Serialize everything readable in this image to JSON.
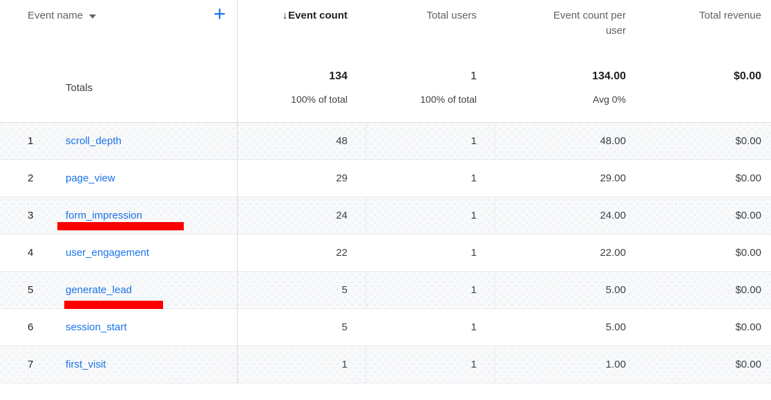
{
  "table": {
    "header": {
      "dimension_label": "Event name",
      "columns": {
        "event_count": "Event count",
        "total_users": "Total users",
        "event_count_per_user": "Event count per user",
        "total_revenue": "Total revenue"
      },
      "sorted_column": "Event count",
      "sort_direction": "descending"
    },
    "totals": {
      "label": "Totals",
      "event_count": "134",
      "event_count_sub": "100% of total",
      "total_users": "1",
      "total_users_sub": "100% of total",
      "event_count_per_user": "134.00",
      "event_count_per_user_sub": "Avg 0%",
      "total_revenue": "$0.00"
    },
    "rows": [
      {
        "index": "1",
        "name": "scroll_depth",
        "event_count": "48",
        "total_users": "1",
        "event_count_per_user": "48.00",
        "total_revenue": "$0.00"
      },
      {
        "index": "2",
        "name": "page_view",
        "event_count": "29",
        "total_users": "1",
        "event_count_per_user": "29.00",
        "total_revenue": "$0.00"
      },
      {
        "index": "3",
        "name": "form_impression",
        "event_count": "24",
        "total_users": "1",
        "event_count_per_user": "24.00",
        "total_revenue": "$0.00"
      },
      {
        "index": "4",
        "name": "user_engagement",
        "event_count": "22",
        "total_users": "1",
        "event_count_per_user": "22.00",
        "total_revenue": "$0.00"
      },
      {
        "index": "5",
        "name": "generate_lead",
        "event_count": "5",
        "total_users": "1",
        "event_count_per_user": "5.00",
        "total_revenue": "$0.00"
      },
      {
        "index": "6",
        "name": "session_start",
        "event_count": "5",
        "total_users": "1",
        "event_count_per_user": "5.00",
        "total_revenue": "$0.00"
      },
      {
        "index": "7",
        "name": "first_visit",
        "event_count": "1",
        "total_users": "1",
        "event_count_per_user": "1.00",
        "total_revenue": "$0.00"
      }
    ]
  },
  "icons": {
    "plus": "+",
    "sort_descending": "↓"
  },
  "annotations": {
    "underline_color": "#fa0000",
    "items": [
      {
        "target": "form_impression"
      },
      {
        "target": "generate_lead"
      }
    ]
  },
  "colors": {
    "link_blue": "#1a73e8",
    "accent_blue": "#1a73e8",
    "header_gray": "#5f6368",
    "text_dark": "#202124",
    "stripe": "#f8f9fa",
    "border": "#e8eaed"
  }
}
